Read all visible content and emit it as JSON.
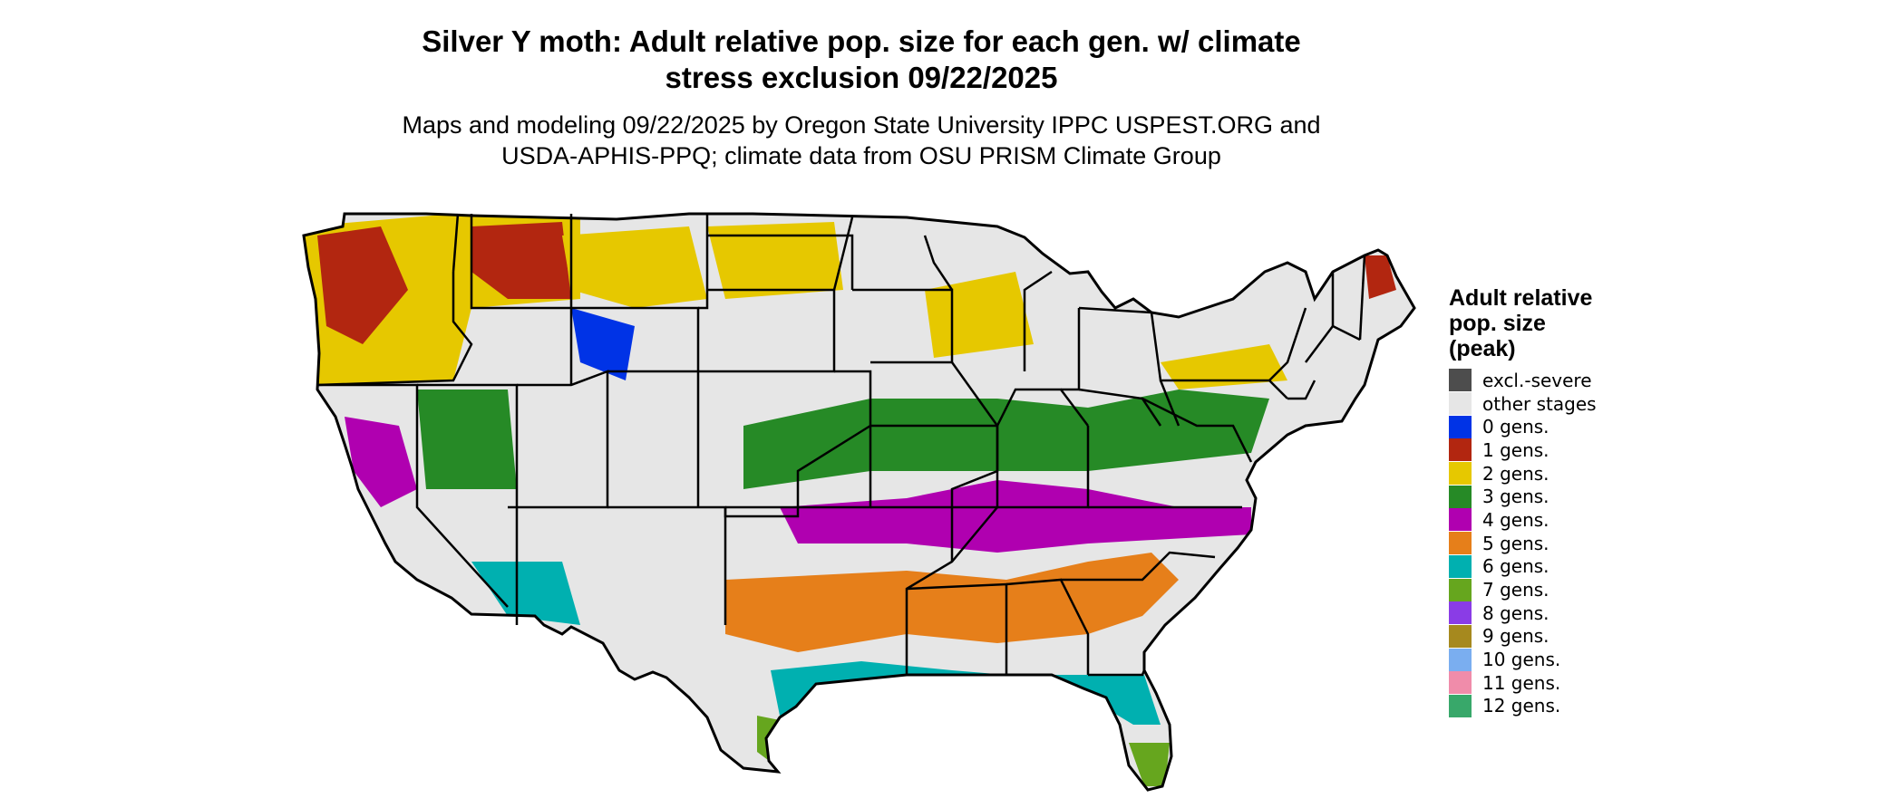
{
  "title_line1": "Silver Y moth: Adult relative pop. size for each gen. w/ climate",
  "title_line2": "stress exclusion 09/22/2025",
  "subtitle_line1": "Maps and modeling 09/22/2025 by Oregon State University IPPC USPEST.ORG and",
  "subtitle_line2": "USDA-APHIS-PPQ; climate data from OSU PRISM Climate Group",
  "legend": {
    "title_line1": "Adult relative",
    "title_line2": "pop. size",
    "title_line3": "(peak)",
    "items": [
      {
        "label": "excl.-severe",
        "color": "#4d4d4d"
      },
      {
        "label": "other stages",
        "color": "#e6e6e6"
      },
      {
        "label": "0 gens.",
        "color": "#0033e6"
      },
      {
        "label": "1 gens.",
        "color": "#b22610"
      },
      {
        "label": "2 gens.",
        "color": "#e6c800"
      },
      {
        "label": "3 gens.",
        "color": "#268a26"
      },
      {
        "label": "4 gens.",
        "color": "#b000b0"
      },
      {
        "label": "5 gens.",
        "color": "#e67f1a"
      },
      {
        "label": "6 gens.",
        "color": "#00b0b0"
      },
      {
        "label": "7 gens.",
        "color": "#66a61e"
      },
      {
        "label": "8 gens.",
        "color": "#8a3ce6"
      },
      {
        "label": "9 gens.",
        "color": "#a6891e"
      },
      {
        "label": "10 gens.",
        "color": "#7aaef0"
      },
      {
        "label": "11 gens.",
        "color": "#f08caa"
      },
      {
        "label": "12 gens.",
        "color": "#38a86a"
      }
    ]
  },
  "map_colors": {
    "background": "#e6e6e6",
    "outline": "#000000"
  }
}
